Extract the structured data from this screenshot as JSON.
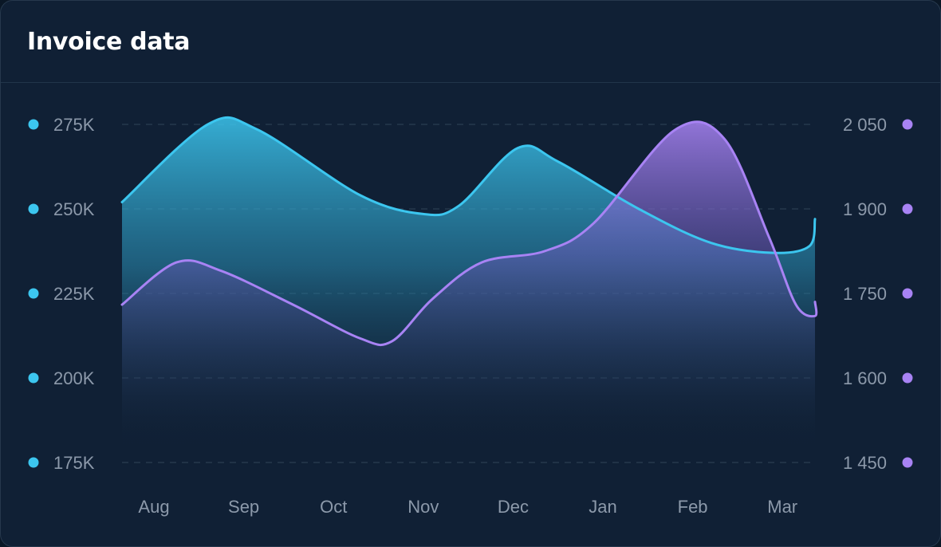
{
  "card": {
    "title": "Invoice data"
  },
  "colors": {
    "background": "#102035",
    "series_a": "#3cc6ef",
    "series_b": "#a883f4",
    "grid": "#2a3d52",
    "tick_text": "#8c99aa"
  },
  "chart_data": {
    "type": "area",
    "title": "Invoice data",
    "x": [
      "Aug",
      "Sep",
      "Oct",
      "Nov",
      "Dec",
      "Jan",
      "Feb",
      "Mar"
    ],
    "grid": true,
    "grid_style": "dashed",
    "y_left": {
      "ylim": [
        175000,
        275000
      ],
      "ticks": [
        275000,
        250000,
        225000,
        200000,
        175000
      ],
      "tick_labels": [
        "275K",
        "250K",
        "225K",
        "200K",
        "175K"
      ]
    },
    "y_right": {
      "ylim": [
        1450,
        2050
      ],
      "ticks": [
        2050,
        1900,
        1750,
        1600,
        1450
      ],
      "tick_labels": [
        "2 050",
        "1 900",
        "1 750",
        "1 600",
        "1 450"
      ]
    },
    "series": [
      {
        "axis": "left",
        "color": "#3cc6ef",
        "points": [
          {
            "x": 0,
            "y": 252000
          },
          {
            "x": 0.6,
            "y": 275000
          },
          {
            "x": 1.15,
            "y": 273500
          },
          {
            "x": 2.3,
            "y": 254000
          },
          {
            "x": 3.0,
            "y": 248500
          },
          {
            "x": 3.4,
            "y": 251000
          },
          {
            "x": 4.05,
            "y": 268000
          },
          {
            "x": 4.5,
            "y": 264000
          },
          {
            "x": 5.4,
            "y": 250000
          },
          {
            "x": 6.2,
            "y": 240000
          },
          {
            "x": 6.9,
            "y": 237000
          },
          {
            "x": 7.3,
            "y": 239000
          },
          {
            "x": 7.75,
            "y": 247000
          }
        ]
      },
      {
        "axis": "right",
        "color": "#a883f4",
        "points": [
          {
            "x": 0,
            "y": 1730
          },
          {
            "x": 0.25,
            "y": 1805
          },
          {
            "x": 0.75,
            "y": 1790
          },
          {
            "x": 1.55,
            "y": 1730
          },
          {
            "x": 2.3,
            "y": 1670
          },
          {
            "x": 2.65,
            "y": 1665
          },
          {
            "x": 3.1,
            "y": 1740
          },
          {
            "x": 3.65,
            "y": 1805
          },
          {
            "x": 4.35,
            "y": 1825
          },
          {
            "x": 4.9,
            "y": 1875
          },
          {
            "x": 5.8,
            "y": 2040
          },
          {
            "x": 6.35,
            "y": 2025
          },
          {
            "x": 6.85,
            "y": 1850
          },
          {
            "x": 7.15,
            "y": 1730
          },
          {
            "x": 7.5,
            "y": 1710
          },
          {
            "x": 7.75,
            "y": 1735
          }
        ]
      }
    ]
  }
}
